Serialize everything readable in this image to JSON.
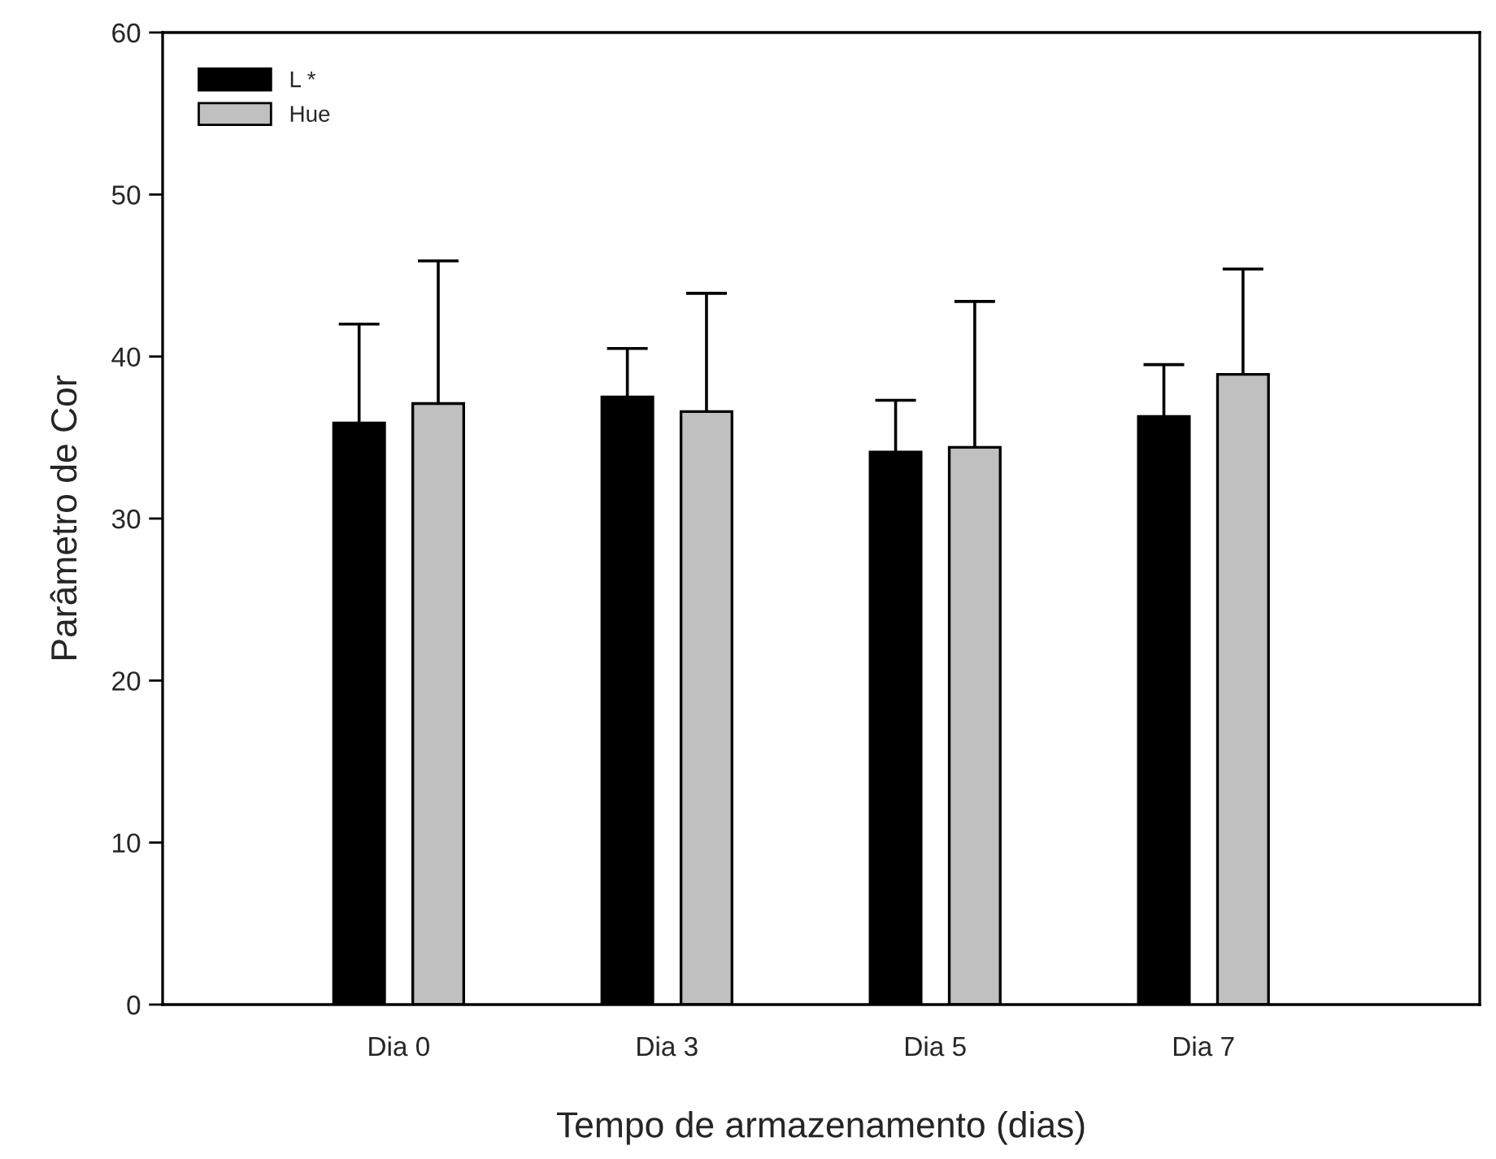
{
  "chart_data": {
    "type": "bar",
    "xlabel": "Tempo de armazenamento (dias)",
    "ylabel": "Parâmetro de Cor",
    "categories": [
      "Dia 0",
      "Dia 3",
      "Dia 5",
      "Dia 7"
    ],
    "series": [
      {
        "name": "L *",
        "color": "#000000",
        "values": [
          35.9,
          37.5,
          34.1,
          36.3
        ],
        "errors": [
          6.1,
          3.0,
          3.2,
          3.2
        ]
      },
      {
        "name": "Hue",
        "color": "#c0c0c0",
        "values": [
          37.1,
          36.6,
          34.4,
          38.9
        ],
        "errors": [
          8.8,
          7.3,
          9.0,
          6.5
        ]
      }
    ],
    "ylim": [
      0,
      60
    ],
    "yticks": [
      0,
      10,
      20,
      30,
      40,
      50,
      60
    ],
    "grid": false,
    "legend": "top left"
  }
}
